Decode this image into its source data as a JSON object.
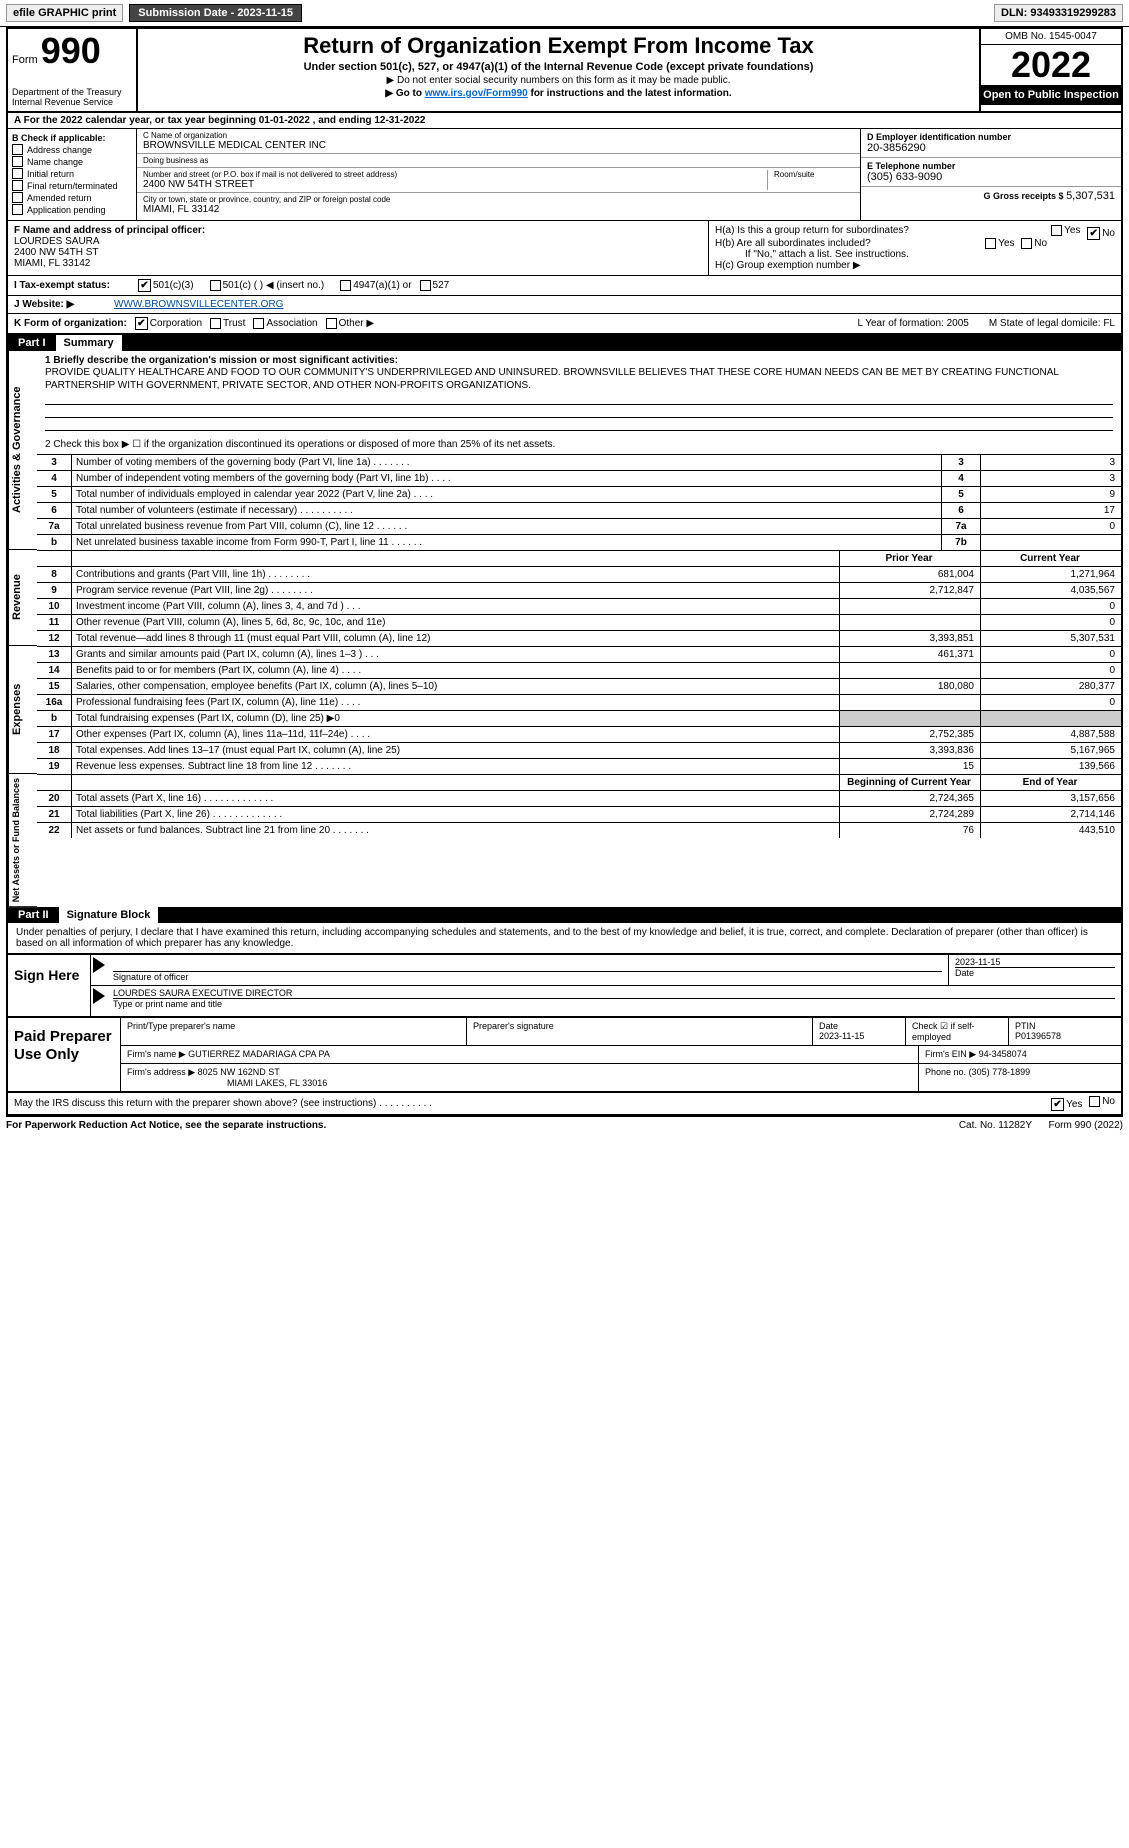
{
  "topbar": {
    "efile": "efile GRAPHIC print",
    "submission_label": "Submission Date - 2023-11-15",
    "dln": "DLN: 93493319299283"
  },
  "header": {
    "form_word": "Form",
    "form_num": "990",
    "dept1": "Department of the Treasury",
    "dept2": "Internal Revenue Service",
    "title": "Return of Organization Exempt From Income Tax",
    "sub1": "Under section 501(c), 527, or 4947(a)(1) of the Internal Revenue Code (except private foundations)",
    "sub2": "▶ Do not enter social security numbers on this form as it may be made public.",
    "sub3_pre": "▶ Go to ",
    "sub3_link": "www.irs.gov/Form990",
    "sub3_post": " for instructions and the latest information.",
    "omb": "OMB No. 1545-0047",
    "year": "2022",
    "open": "Open to Public Inspection"
  },
  "row_a": "A For the 2022 calendar year, or tax year beginning 01-01-2022     , and ending 12-31-2022",
  "col_b": {
    "title": "B Check if applicable:",
    "items": [
      "Address change",
      "Name change",
      "Initial return",
      "Final return/terminated",
      "Amended return",
      "Application pending"
    ]
  },
  "col_c": {
    "name_label": "C Name of organization",
    "name": "BROWNSVILLE MEDICAL CENTER INC",
    "dba_label": "Doing business as",
    "dba": "",
    "street_label": "Number and street (or P.O. box if mail is not delivered to street address)",
    "room_label": "Room/suite",
    "street": "2400 NW 54TH STREET",
    "city_label": "City or town, state or province, country, and ZIP or foreign postal code",
    "city": "MIAMI, FL  33142"
  },
  "col_d": {
    "ein_label": "D Employer identification number",
    "ein": "20-3856290",
    "phone_label": "E Telephone number",
    "phone": "(305) 633-9090",
    "gross_label": "G Gross receipts $",
    "gross": "5,307,531"
  },
  "section_f": {
    "f_label": "F Name and address of principal officer:",
    "f_name": "LOURDES SAURA",
    "f_addr1": "2400 NW 54TH ST",
    "f_addr2": "MIAMI, FL  33142",
    "ha": "H(a)  Is this a group return for subordinates?",
    "hb": "H(b)  Are all subordinates included?",
    "hb_note": "If \"No,\" attach a list. See instructions.",
    "hc": "H(c)  Group exemption number ▶",
    "yes": "Yes",
    "no": "No"
  },
  "tax_row": {
    "label": "I   Tax-exempt status:",
    "o1": "501(c)(3)",
    "o2": "501(c) (   ) ◀ (insert no.)",
    "o3": "4947(a)(1) or",
    "o4": "527"
  },
  "web_row": {
    "label": "J   Website: ▶",
    "val": "WWW.BROWNSVILLECENTER.ORG"
  },
  "k_row": {
    "label": "K Form of organization:",
    "opts": [
      "Corporation",
      "Trust",
      "Association",
      "Other ▶"
    ],
    "l": "L Year of formation: 2005",
    "m": "M State of legal domicile: FL"
  },
  "part1": {
    "num": "Part I",
    "title": "Summary",
    "q1_label": "1  Briefly describe the organization's mission or most significant activities:",
    "q1_text": "PROVIDE QUALITY HEALTHCARE AND FOOD TO OUR COMMUNITY'S UNDERPRIVILEGED AND UNINSURED. BROWNSVILLE BELIEVES THAT THESE CORE HUMAN NEEDS CAN BE MET BY CREATING FUNCTIONAL PARTNERSHIP WITH GOVERNMENT, PRIVATE SECTOR, AND OTHER NON-PROFITS ORGANIZATIONS.",
    "q2": "2   Check this box ▶ ☐  if the organization discontinued its operations or disposed of more than 25% of its net assets.",
    "vlab_gov": "Activities & Governance",
    "vlab_rev": "Revenue",
    "vlab_exp": "Expenses",
    "vlab_net": "Net Assets or Fund Balances",
    "hdr_prior": "Prior Year",
    "hdr_curr": "Current Year",
    "hdr_beg": "Beginning of Current Year",
    "hdr_end": "End of Year",
    "gov_lines": [
      {
        "n": "3",
        "d": "Number of voting members of the governing body (Part VI, line 1a)   .    .    .    .    .    .    .",
        "b": "3",
        "v": "3"
      },
      {
        "n": "4",
        "d": "Number of independent voting members of the governing body (Part VI, line 1b)   .    .    .    .",
        "b": "4",
        "v": "3"
      },
      {
        "n": "5",
        "d": "Total number of individuals employed in calendar year 2022 (Part V, line 2a)   .    .    .    .",
        "b": "5",
        "v": "9"
      },
      {
        "n": "6",
        "d": "Total number of volunteers (estimate if necessary)    .    .    .    .    .    .    .    .    .    .",
        "b": "6",
        "v": "17"
      },
      {
        "n": "7a",
        "d": "Total unrelated business revenue from Part VIII, column (C), line 12   .    .    .    .    .    .",
        "b": "7a",
        "v": "0"
      },
      {
        "n": "b",
        "d": "Net unrelated business taxable income from Form 990-T, Part I, line 11   .    .    .    .    .    .",
        "b": "7b",
        "v": ""
      }
    ],
    "rev_lines": [
      {
        "n": "8",
        "d": "Contributions and grants (Part VIII, line 1h)    .    .    .    .    .    .    .    .",
        "p": "681,004",
        "c": "1,271,964"
      },
      {
        "n": "9",
        "d": "Program service revenue (Part VIII, line 2g)   .    .    .    .    .    .    .    .",
        "p": "2,712,847",
        "c": "4,035,567"
      },
      {
        "n": "10",
        "d": "Investment income (Part VIII, column (A), lines 3, 4, and 7d )    .    .    .",
        "p": "",
        "c": "0"
      },
      {
        "n": "11",
        "d": "Other revenue (Part VIII, column (A), lines 5, 6d, 8c, 9c, 10c, and 11e)",
        "p": "",
        "c": "0"
      },
      {
        "n": "12",
        "d": "Total revenue—add lines 8 through 11 (must equal Part VIII, column (A), line 12)",
        "p": "3,393,851",
        "c": "5,307,531"
      }
    ],
    "exp_lines": [
      {
        "n": "13",
        "d": "Grants and similar amounts paid (Part IX, column (A), lines 1–3 )   .    .    .",
        "p": "461,371",
        "c": "0"
      },
      {
        "n": "14",
        "d": "Benefits paid to or for members (Part IX, column (A), line 4)   .    .    .    .",
        "p": "",
        "c": "0"
      },
      {
        "n": "15",
        "d": "Salaries, other compensation, employee benefits (Part IX, column (A), lines 5–10)",
        "p": "180,080",
        "c": "280,377"
      },
      {
        "n": "16a",
        "d": "Professional fundraising fees (Part IX, column (A), line 11e)   .    .    .    .",
        "p": "",
        "c": "0"
      },
      {
        "n": "b",
        "d": "Total fundraising expenses (Part IX, column (D), line 25) ▶0",
        "p": "shade",
        "c": "shade"
      },
      {
        "n": "17",
        "d": "Other expenses (Part IX, column (A), lines 11a–11d, 11f–24e)   .    .    .    .",
        "p": "2,752,385",
        "c": "4,887,588"
      },
      {
        "n": "18",
        "d": "Total expenses. Add lines 13–17 (must equal Part IX, column (A), line 25)",
        "p": "3,393,836",
        "c": "5,167,965"
      },
      {
        "n": "19",
        "d": "Revenue less expenses. Subtract line 18 from line 12   .    .    .    .    .    .    .",
        "p": "15",
        "c": "139,566"
      }
    ],
    "net_lines": [
      {
        "n": "20",
        "d": "Total assets (Part X, line 16)   .    .    .    .    .    .    .    .    .    .    .    .    .",
        "p": "2,724,365",
        "c": "3,157,656"
      },
      {
        "n": "21",
        "d": "Total liabilities (Part X, line 26)   .    .    .    .    .    .    .    .    .    .    .    .    .",
        "p": "2,724,289",
        "c": "2,714,146"
      },
      {
        "n": "22",
        "d": "Net assets or fund balances. Subtract line 21 from line 20   .    .    .    .    .    .    .",
        "p": "76",
        "c": "443,510"
      }
    ]
  },
  "part2": {
    "num": "Part II",
    "title": "Signature Block",
    "intro": "Under penalties of perjury, I declare that I have examined this return, including accompanying schedules and statements, and to the best of my knowledge and belief, it is true, correct, and complete. Declaration of preparer (other than officer) is based on all information of which preparer has any knowledge."
  },
  "sign": {
    "label": "Sign Here",
    "sig_of_officer": "Signature of officer",
    "date": "2023-11-15",
    "date_label": "Date",
    "name_title": "LOURDES SAURA  EXECUTIVE DIRECTOR",
    "name_title_label": "Type or print name and title"
  },
  "paid": {
    "label": "Paid Preparer Use Only",
    "h1": "Print/Type preparer's name",
    "h2": "Preparer's signature",
    "h3": "Date",
    "h3v": "2023-11-15",
    "h4": "Check ☑ if self-employed",
    "h5": "PTIN",
    "h5v": "P01396578",
    "firm_name_label": "Firm's name    ▶",
    "firm_name": "GUTIERREZ MADARIAGA CPA PA",
    "firm_ein_label": "Firm's EIN ▶",
    "firm_ein": "94-3458074",
    "firm_addr_label": "Firm's address ▶",
    "firm_addr1": "8025 NW 162ND ST",
    "firm_addr2": "MIAMI LAKES, FL  33016",
    "phone_label": "Phone no.",
    "phone": "(305) 778-1899"
  },
  "footer": {
    "q": "May the IRS discuss this return with the preparer shown above? (see instructions)   .    .    .    .    .    .    .    .    .    .",
    "yes": "Yes",
    "no": "No",
    "pra": "For Paperwork Reduction Act Notice, see the separate instructions.",
    "cat": "Cat. No. 11282Y",
    "form": "Form 990 (2022)"
  }
}
